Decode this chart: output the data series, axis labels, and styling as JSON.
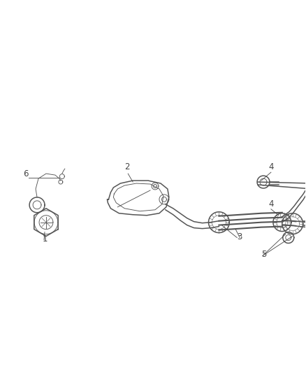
{
  "bg_color": "#ffffff",
  "line_color": "#555555",
  "label_color": "#444444",
  "figsize": [
    4.38,
    5.33
  ],
  "dpi": 100,
  "xlim": [
    0,
    438
  ],
  "ylim": [
    0,
    533
  ]
}
